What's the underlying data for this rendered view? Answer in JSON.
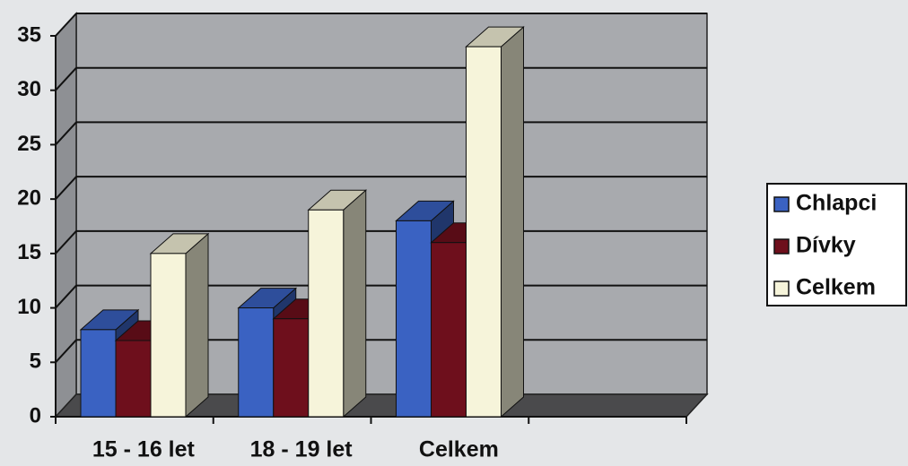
{
  "chart_data": {
    "type": "bar3d",
    "categories": [
      "15 - 16 let",
      "18 - 19 let",
      "Celkem",
      null
    ],
    "series": [
      {
        "name": "Chlapci",
        "color": "#3a62c2",
        "values": [
          8,
          10,
          18,
          null
        ]
      },
      {
        "name": "Dívky",
        "color": "#6e0f1c",
        "values": [
          7,
          9,
          16,
          null
        ]
      },
      {
        "name": "Celkem",
        "color": "#f6f4da",
        "values": [
          15,
          19,
          34,
          null
        ]
      }
    ],
    "ylim": [
      0,
      35
    ],
    "yticks": [
      0,
      5,
      10,
      15,
      20,
      25,
      30,
      35
    ],
    "grid": true,
    "legend": "right"
  }
}
